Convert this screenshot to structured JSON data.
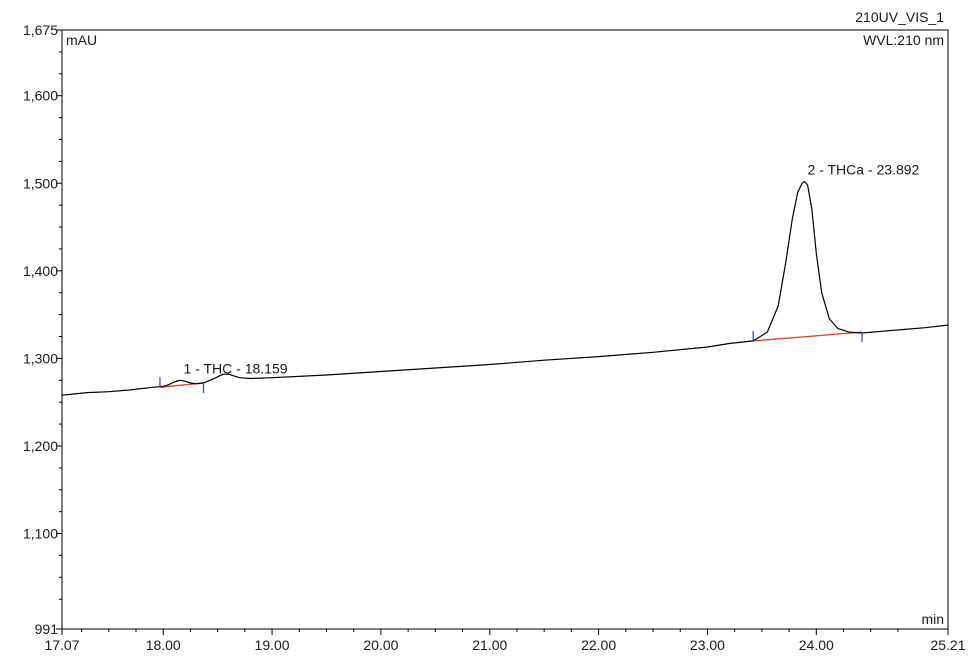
{
  "chart_data": {
    "type": "line",
    "title_lines": [
      "210UV_VIS_1",
      "WVL:210 nm"
    ],
    "ylabel": "mAU",
    "xlabel": "min",
    "xlim": [
      17.07,
      25.21
    ],
    "ylim": [
      991,
      1675
    ],
    "x_ticks": [
      {
        "value": 17.07,
        "label": "17.07"
      },
      {
        "value": 18.0,
        "label": "18.00"
      },
      {
        "value": 19.0,
        "label": "19.00"
      },
      {
        "value": 20.0,
        "label": "20.00"
      },
      {
        "value": 21.0,
        "label": "21.00"
      },
      {
        "value": 22.0,
        "label": "22.00"
      },
      {
        "value": 23.0,
        "label": "23.00"
      },
      {
        "value": 24.0,
        "label": "24.00"
      },
      {
        "value": 25.21,
        "label": "25.21"
      }
    ],
    "y_ticks": [
      {
        "value": 991,
        "label": "991"
      },
      {
        "value": 1100,
        "label": "1,100"
      },
      {
        "value": 1200,
        "label": "1,200"
      },
      {
        "value": 1300,
        "label": "1,300"
      },
      {
        "value": 1400,
        "label": "1,400"
      },
      {
        "value": 1500,
        "label": "1,500"
      },
      {
        "value": 1600,
        "label": "1,600"
      },
      {
        "value": 1675,
        "label": "1,675"
      }
    ],
    "series": [
      {
        "color": "#000000",
        "x": [
          17.07,
          17.3,
          17.5,
          17.7,
          17.9,
          18.0,
          18.05,
          18.1,
          18.15,
          18.2,
          18.25,
          18.3,
          18.37,
          18.45,
          18.55,
          18.6,
          18.65,
          18.7,
          18.8,
          19.0,
          19.5,
          20.0,
          20.5,
          21.0,
          21.5,
          22.0,
          22.5,
          23.0,
          23.2,
          23.42,
          23.55,
          23.65,
          23.72,
          23.78,
          23.83,
          23.87,
          23.892,
          23.92,
          23.96,
          24.0,
          24.05,
          24.12,
          24.2,
          24.3,
          24.42,
          24.6,
          24.8,
          25.0,
          25.21
        ],
        "y": [
          1258,
          1261,
          1262,
          1264,
          1267,
          1268,
          1270,
          1273,
          1275,
          1274,
          1272,
          1271,
          1272,
          1276,
          1282,
          1282,
          1280,
          1278,
          1277,
          1278,
          1281,
          1285,
          1289,
          1293,
          1298,
          1302,
          1307,
          1313,
          1317,
          1320,
          1330,
          1360,
          1410,
          1460,
          1490,
          1500,
          1502,
          1498,
          1470,
          1420,
          1375,
          1345,
          1334,
          1330,
          1329,
          1331,
          1333,
          1335,
          1338
        ]
      }
    ],
    "baselines": [
      {
        "color": "#e8402a",
        "x": [
          17.97,
          18.37
        ],
        "y": [
          1267,
          1272
        ]
      },
      {
        "color": "#e8402a",
        "x": [
          23.42,
          24.42
        ],
        "y": [
          1320,
          1330
        ]
      }
    ],
    "integration_markers": [
      {
        "x": 17.97,
        "y": 1267,
        "side": "up"
      },
      {
        "x": 18.37,
        "y": 1272,
        "side": "down"
      },
      {
        "x": 23.42,
        "y": 1320,
        "side": "up"
      },
      {
        "x": 24.42,
        "y": 1330,
        "side": "down"
      }
    ],
    "peaks": [
      {
        "label": "1 - THC - 18.159",
        "x": 18.159,
        "y": 1275
      },
      {
        "label": "2 - THCa - 23.892",
        "x": 23.892,
        "y": 1502
      }
    ],
    "grid": false,
    "line_color": "#000000",
    "baseline_color": "#e8402a",
    "marker_color": "#3a52b0"
  }
}
